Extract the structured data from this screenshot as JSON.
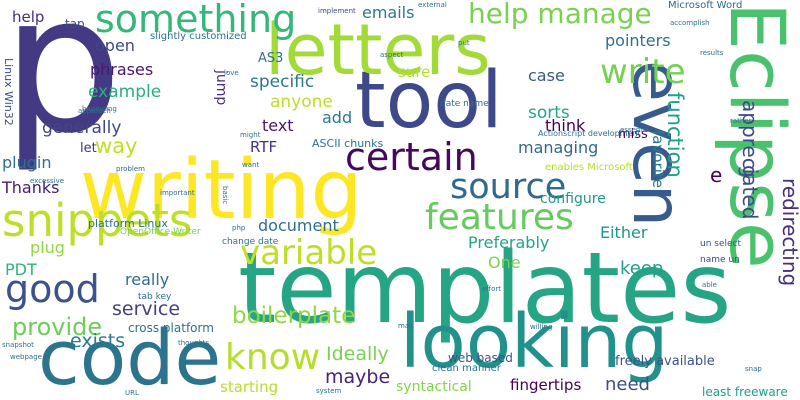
{
  "words": [
    {
      "text": "p",
      "color": "#443983"
    },
    {
      "text": "templates",
      "color": "#25a584"
    },
    {
      "text": "writing",
      "color": "#fde725"
    },
    {
      "text": "tool",
      "color": "#3e4989"
    },
    {
      "text": "letters",
      "color": "#a2da37"
    },
    {
      "text": "code",
      "color": "#2c738e"
    },
    {
      "text": "looking",
      "color": "#21918c"
    },
    {
      "text": "Eclipse",
      "color": "#4ac16d"
    },
    {
      "text": "even",
      "color": "#375b8d"
    },
    {
      "text": "something",
      "color": "#35b779"
    },
    {
      "text": "snippets",
      "color": "#bddf26"
    },
    {
      "text": "certain",
      "color": "#46085c"
    },
    {
      "text": "source",
      "color": "#31688e"
    },
    {
      "text": "features",
      "color": "#65cb5e"
    },
    {
      "text": "variable",
      "color": "#bddf26"
    },
    {
      "text": "write",
      "color": "#75d054"
    },
    {
      "text": "help manage",
      "color": "#7ad151"
    },
    {
      "text": "good",
      "color": "#3b528b"
    },
    {
      "text": "know",
      "color": "#b5de2b"
    },
    {
      "text": "provide",
      "color": "#6ccd5a"
    },
    {
      "text": "boilerplate",
      "color": "#90d743"
    },
    {
      "text": "function",
      "color": "#1fa088"
    },
    {
      "text": "redirecting",
      "color": "#472d7b"
    },
    {
      "text": "appreciated",
      "color": "#3e4989"
    },
    {
      "text": "way",
      "color": "#c0df25"
    },
    {
      "text": "service",
      "color": "#433e85"
    },
    {
      "text": "exists",
      "color": "#2a788e"
    },
    {
      "text": "maybe",
      "color": "#482374"
    },
    {
      "text": "Ideally",
      "color": "#7ad151"
    },
    {
      "text": "generally",
      "color": "#404688"
    },
    {
      "text": "sorts",
      "color": "#21a685"
    },
    {
      "text": "anyone",
      "color": "#bddf26"
    },
    {
      "text": "specific",
      "color": "#2a788e"
    },
    {
      "text": "phrases",
      "color": "#48186a"
    },
    {
      "text": "example",
      "color": "#29af7f"
    },
    {
      "text": "open",
      "color": "#3e4989"
    },
    {
      "text": "pointers",
      "color": "#2d708e"
    },
    {
      "text": "emails",
      "color": "#2a788e"
    },
    {
      "text": "help",
      "color": "#472d7b"
    },
    {
      "text": "document",
      "color": "#2d708e"
    },
    {
      "text": "Preferably",
      "color": "#21a685"
    },
    {
      "text": "plugin",
      "color": "#2c728e"
    },
    {
      "text": "Thanks",
      "color": "#481b6d"
    },
    {
      "text": "plug",
      "color": "#8fd744"
    },
    {
      "text": "PDT",
      "color": "#2fb47c"
    },
    {
      "text": "really",
      "color": "#2e6e8e"
    },
    {
      "text": "managing",
      "color": "#31688e"
    },
    {
      "text": "think",
      "color": "#440154"
    },
    {
      "text": "case",
      "color": "#375a8c"
    },
    {
      "text": "sure",
      "color": "#b5de2b"
    },
    {
      "text": "favorite",
      "color": "#2a788e"
    },
    {
      "text": "configure",
      "color": "#1f9a8a"
    },
    {
      "text": "Either",
      "color": "#1f948c"
    },
    {
      "text": "keep",
      "color": "#1fa187"
    },
    {
      "text": "One",
      "color": "#7ad151"
    },
    {
      "text": "starting",
      "color": "#b8de29"
    },
    {
      "text": "need",
      "color": "#3e4a89"
    },
    {
      "text": "fingertips",
      "color": "#440154"
    },
    {
      "text": "syntactical",
      "color": "#84d44b"
    },
    {
      "text": "text",
      "color": "#48186a"
    },
    {
      "text": "add",
      "color": "#287c8e"
    },
    {
      "text": "RTF",
      "color": "#46327e"
    },
    {
      "text": "let",
      "color": "#46337f"
    },
    {
      "text": "AS3",
      "color": "#2c728e"
    },
    {
      "text": "jump",
      "color": "#472a7a"
    },
    {
      "text": "e",
      "color": "#440154"
    },
    {
      "text": "g",
      "color": "#3e4989"
    },
    {
      "text": "miss",
      "color": "#440154"
    },
    {
      "text": "freely available",
      "color": "#3b518b"
    },
    {
      "text": "least freeware",
      "color": "#1f9e89"
    },
    {
      "text": "web based",
      "color": "#3b518b"
    },
    {
      "text": "cross platform",
      "color": "#2d708e"
    },
    {
      "text": "ASCII chunks",
      "color": "#2c728e"
    },
    {
      "text": "platform Linux",
      "color": "#2c728e"
    },
    {
      "text": "Microsoft Word",
      "color": "#31688e"
    },
    {
      "text": "Linux Win32",
      "color": "#3e4989"
    },
    {
      "text": "slightly customized",
      "color": "#2d708e"
    },
    {
      "text": "tap",
      "color": "#3e4989"
    },
    {
      "text": "date name",
      "color": "#2d708e"
    },
    {
      "text": "clean manner",
      "color": "#2d708e"
    },
    {
      "text": "change date",
      "color": "#2d708e"
    },
    {
      "text": "tab key",
      "color": "#2d708e"
    },
    {
      "text": "un select",
      "color": "#3b518b"
    },
    {
      "text": "name un",
      "color": "#3e4989"
    },
    {
      "text": "OpenOffice Writer",
      "color": "#75d054"
    },
    {
      "text": "enables Microsoft",
      "color": "#b5de2b"
    },
    {
      "text": "Actionscript development",
      "color": "#2d708e"
    },
    {
      "text": "implement",
      "color": "#3e4989"
    },
    {
      "text": "external",
      "color": "#2d708e"
    },
    {
      "text": "aspect",
      "color": "#2d708e"
    },
    {
      "text": "accomplish",
      "color": "#2d708e"
    },
    {
      "text": "results",
      "color": "#2d708e"
    },
    {
      "text": "rather",
      "color": "#2d708e"
    },
    {
      "text": "essence",
      "color": "#2d708e"
    },
    {
      "text": "love",
      "color": "#2d708e"
    },
    {
      "text": "beginning",
      "color": "#2d708e"
    },
    {
      "text": "approach",
      "color": "#2d708e"
    },
    {
      "text": "might",
      "color": "#2d708e"
    },
    {
      "text": "want",
      "color": "#2d708e"
    },
    {
      "text": "problem",
      "color": "#2d708e"
    },
    {
      "text": "excessive",
      "color": "#2d708e"
    },
    {
      "text": "important",
      "color": "#2d708e"
    },
    {
      "text": "basic",
      "color": "#2d708e"
    },
    {
      "text": "effort",
      "color": "#2d708e"
    },
    {
      "text": "able",
      "color": "#2d708e"
    },
    {
      "text": "willing",
      "color": "#2d708e"
    },
    {
      "text": "snap",
      "color": "#2d708e"
    },
    {
      "text": "may",
      "color": "#2d708e"
    },
    {
      "text": "thoughts",
      "color": "#2d708e"
    },
    {
      "text": "snapshot",
      "color": "#2d708e"
    },
    {
      "text": "webpage",
      "color": "#2d708e"
    },
    {
      "text": "URL",
      "color": "#2d708e"
    },
    {
      "text": "system",
      "color": "#2d708e"
    },
    {
      "text": "php",
      "color": "#2d708e"
    },
    {
      "text": "put",
      "color": "#2d708e"
    }
  ]
}
